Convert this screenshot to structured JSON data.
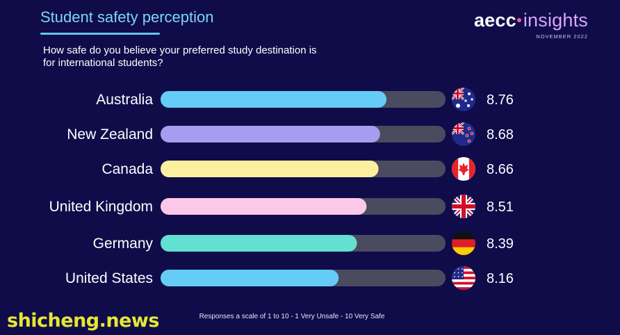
{
  "header": {
    "title": "Student safety perception",
    "question": "How safe do you believe your preferred study destination is for international students?",
    "logo_main": "aecc",
    "logo_accent": "insights",
    "logo_date": "NOVEMBER 2022"
  },
  "footnote": "Responses a scale of 1 to 10 - 1 Very Unsafe - 10 Very Safe",
  "watermark": "shicheng.news",
  "colors": {
    "background": "#100c4a",
    "track": "#4a4b5e",
    "bar_colors": [
      "#65cdf5",
      "#a89cf0",
      "#fcef9e",
      "#fcc8e8",
      "#64e0d3",
      "#65cdf5"
    ]
  },
  "chart_data": {
    "type": "bar",
    "orientation": "horizontal",
    "categories": [
      "Australia",
      "New Zealand",
      "Canada",
      "United Kingdom",
      "Germany",
      "United States"
    ],
    "values": [
      8.76,
      8.68,
      8.66,
      8.51,
      8.39,
      8.16
    ],
    "value_labels": [
      "8.76",
      "8.68",
      "8.66",
      "8.51",
      "8.39",
      "8.16"
    ],
    "xlim": [
      0,
      10
    ],
    "flag_icons": [
      "australia-flag-icon",
      "new-zealand-flag-icon",
      "canada-flag-icon",
      "united-kingdom-flag-icon",
      "germany-flag-icon",
      "united-states-flag-icon"
    ],
    "grid": false,
    "legend": "none"
  }
}
